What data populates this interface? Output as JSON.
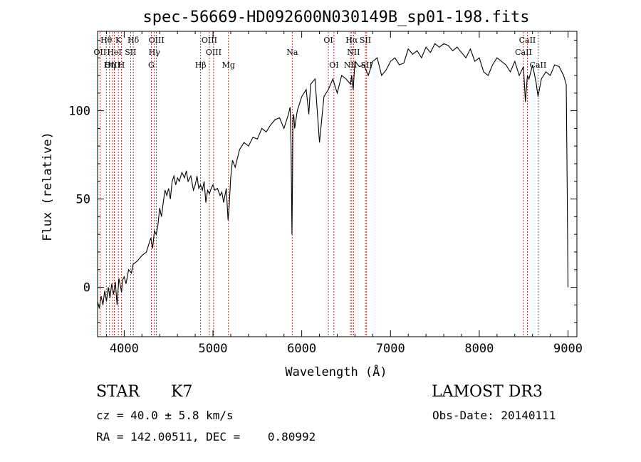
{
  "chart_data": {
    "type": "line",
    "title": "spec-56669-HD092600N030149B_sp01-198.fits",
    "xlabel": "Wavelength (Å)",
    "ylabel": "Flux (relative)",
    "xlim": [
      3700,
      9100
    ],
    "ylim": [
      -28,
      145
    ],
    "xticks": [
      4000,
      5000,
      6000,
      7000,
      8000,
      9000
    ],
    "yticks": [
      0,
      50,
      100
    ],
    "series": [
      {
        "name": "flux",
        "x": [
          3700,
          3720,
          3740,
          3760,
          3780,
          3800,
          3820,
          3840,
          3860,
          3880,
          3900,
          3920,
          3940,
          3960,
          3970,
          3980,
          4000,
          4020,
          4050,
          4080,
          4100,
          4150,
          4200,
          4250,
          4300,
          4320,
          4340,
          4360,
          4380,
          4400,
          4420,
          4440,
          4460,
          4480,
          4500,
          4520,
          4540,
          4560,
          4580,
          4600,
          4620,
          4650,
          4680,
          4700,
          4720,
          4750,
          4780,
          4800,
          4820,
          4840,
          4860,
          4880,
          4900,
          4920,
          4940,
          4960,
          4980,
          5000,
          5020,
          5050,
          5080,
          5100,
          5120,
          5150,
          5170,
          5183,
          5200,
          5220,
          5250,
          5300,
          5350,
          5400,
          5450,
          5500,
          5550,
          5600,
          5650,
          5700,
          5750,
          5800,
          5850,
          5870,
          5880,
          5890,
          5896,
          5900,
          5910,
          5920,
          5950,
          6000,
          6050,
          6080,
          6100,
          6150,
          6200,
          6250,
          6300,
          6350,
          6400,
          6450,
          6500,
          6550,
          6563,
          6580,
          6600,
          6650,
          6700,
          6750,
          6800,
          6850,
          6900,
          6950,
          7000,
          7050,
          7100,
          7150,
          7200,
          7250,
          7300,
          7350,
          7400,
          7450,
          7500,
          7550,
          7600,
          7650,
          7700,
          7750,
          7800,
          7850,
          7900,
          7950,
          8000,
          8050,
          8100,
          8150,
          8200,
          8250,
          8300,
          8350,
          8400,
          8450,
          8498,
          8520,
          8542,
          8560,
          8600,
          8640,
          8662,
          8700,
          8750,
          8800,
          8850,
          8900,
          8950,
          8980,
          8990,
          9000
        ],
        "y": [
          -8,
          -12,
          -5,
          -10,
          -2,
          -8,
          0,
          -6,
          2,
          -4,
          3,
          -10,
          5,
          0,
          -3,
          4,
          6,
          2,
          10,
          8,
          13,
          15,
          18,
          20,
          28,
          22,
          32,
          30,
          35,
          45,
          40,
          48,
          55,
          52,
          56,
          50,
          60,
          63,
          58,
          62,
          60,
          65,
          62,
          66,
          60,
          63,
          55,
          58,
          63,
          56,
          58,
          55,
          60,
          48,
          55,
          53,
          56,
          58,
          55,
          56,
          52,
          54,
          48,
          56,
          38,
          46,
          62,
          72,
          68,
          78,
          82,
          80,
          85,
          84,
          90,
          88,
          92,
          95,
          96,
          90,
          98,
          102,
          80,
          30,
          60,
          95,
          98,
          90,
          100,
          108,
          112,
          98,
          115,
          118,
          82,
          108,
          112,
          118,
          110,
          120,
          118,
          115,
          120,
          112,
          128,
          125,
          126,
          120,
          128,
          130,
          120,
          123,
          128,
          130,
          126,
          127,
          135,
          132,
          134,
          130,
          136,
          133,
          138,
          136,
          138,
          137,
          134,
          136,
          133,
          130,
          135,
          128,
          130,
          122,
          120,
          126,
          130,
          128,
          126,
          122,
          128,
          120,
          125,
          105,
          120,
          118,
          126,
          116,
          108,
          118,
          122,
          120,
          126,
          125,
          120,
          115,
          60,
          0
        ]
      }
    ],
    "spectral_lines": [
      {
        "name": "Hθ",
        "wavelength": 3798,
        "row": 1
      },
      {
        "name": "K",
        "wavelength": 3934,
        "row": 1
      },
      {
        "name": "Hδ",
        "wavelength": 4102,
        "row": 1
      },
      {
        "name": "OIII",
        "wavelength": 4363,
        "row": 1
      },
      {
        "name": "OIII",
        "wavelength": 4959,
        "row": 1
      },
      {
        "name": "OI",
        "wavelength": 6300,
        "row": 1
      },
      {
        "name": "Hα",
        "wavelength": 6563,
        "row": 1
      },
      {
        "name": "SII",
        "wavelength": 6717,
        "row": 1
      },
      {
        "name": "CaII",
        "wavelength": 8542,
        "row": 1
      },
      {
        "name": "OII",
        "wavelength": 3727,
        "row": 2
      },
      {
        "name": "HeI",
        "wavelength": 3889,
        "row": 2
      },
      {
        "name": "SII",
        "wavelength": 4072,
        "row": 2
      },
      {
        "name": "Hγ",
        "wavelength": 4340,
        "row": 2
      },
      {
        "name": "OIII",
        "wavelength": 5007,
        "row": 2
      },
      {
        "name": "Na",
        "wavelength": 5893,
        "row": 2
      },
      {
        "name": "NII",
        "wavelength": 6583,
        "row": 2
      },
      {
        "name": "CaII",
        "wavelength": 8498,
        "row": 2
      },
      {
        "name": "OIII",
        "wavelength": 3869,
        "row": 3
      },
      {
        "name": "Hη",
        "wavelength": 3835,
        "row": 3
      },
      {
        "name": "H",
        "wavelength": 3968,
        "row": 3
      },
      {
        "name": "G",
        "wavelength": 4305,
        "row": 3
      },
      {
        "name": "Hβ",
        "wavelength": 4861,
        "row": 3
      },
      {
        "name": "Mg",
        "wavelength": 5175,
        "row": 3
      },
      {
        "name": "OI",
        "wavelength": 6363,
        "row": 3
      },
      {
        "name": "NII",
        "wavelength": 6548,
        "row": 3
      },
      {
        "name": "SII",
        "wavelength": 6731,
        "row": 3
      },
      {
        "name": "CaII",
        "wavelength": 8662,
        "row": 3
      }
    ]
  },
  "footer": {
    "object_class": "STAR",
    "subclass": "K7",
    "survey": "LAMOST DR3",
    "cz": "cz = 40.0 ± 5.8 km/s",
    "obs_date": "Obs-Date: 20140111",
    "coords": "RA = 142.00511, DEC =    0.80992"
  }
}
